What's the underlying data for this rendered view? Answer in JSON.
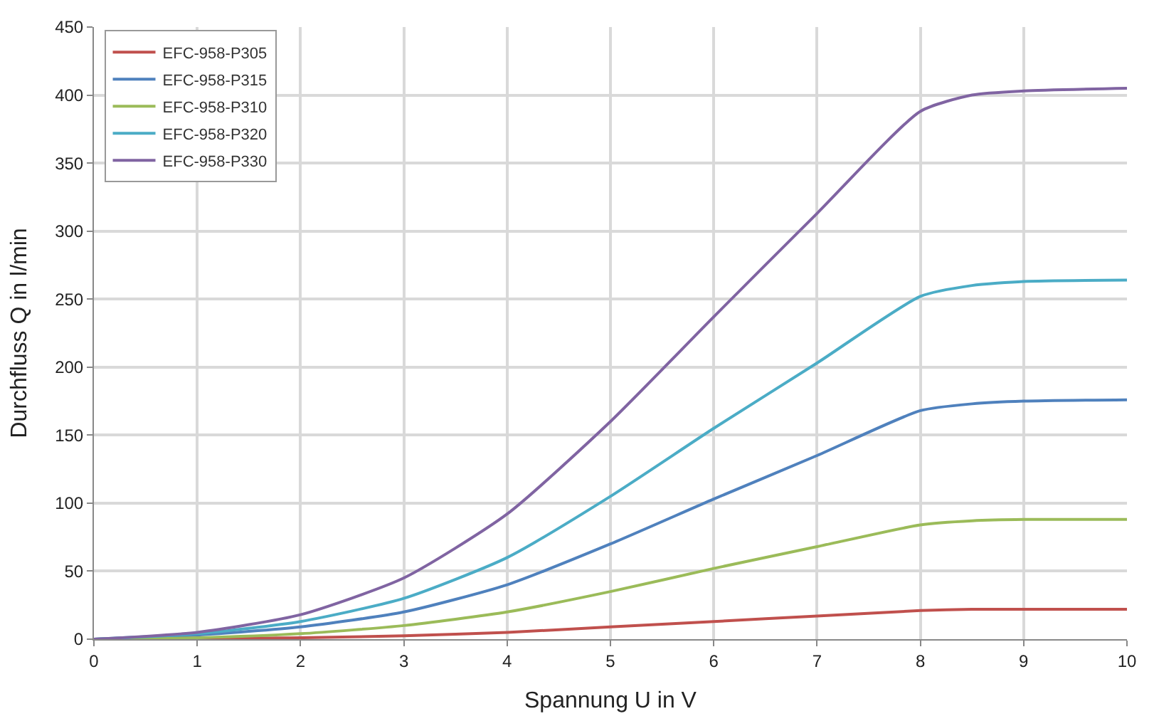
{
  "chart_data": {
    "type": "line",
    "xlabel": "Spannung U in V",
    "ylabel": "Durchfluss Q in l/min",
    "x": [
      0,
      1,
      2,
      3,
      4,
      5,
      6,
      7,
      8,
      8.5,
      9,
      10
    ],
    "series": [
      {
        "name": "EFC-958-P305",
        "color": "#c0504d",
        "values": [
          0,
          0.5,
          1,
          2.5,
          5,
          9,
          13,
          17,
          21,
          22,
          22,
          22
        ]
      },
      {
        "name": "EFC-958-P315",
        "color": "#4f81bd",
        "values": [
          0,
          3,
          9,
          20,
          40,
          70,
          103,
          135,
          168,
          173,
          175,
          176
        ]
      },
      {
        "name": "EFC-958-P310",
        "color": "#9bbb59",
        "values": [
          0,
          1,
          4,
          10,
          20,
          35,
          52,
          68,
          84,
          87,
          88,
          88
        ]
      },
      {
        "name": "EFC-958-P320",
        "color": "#4bacc6",
        "values": [
          0,
          4,
          13,
          30,
          60,
          105,
          155,
          203,
          252,
          260,
          263,
          264
        ]
      },
      {
        "name": "EFC-958-P330",
        "color": "#8064a2",
        "values": [
          0,
          5,
          18,
          45,
          92,
          160,
          237,
          313,
          388,
          400,
          403,
          405
        ]
      }
    ],
    "xlim": [
      0,
      10
    ],
    "xticks": [
      0,
      1,
      2,
      3,
      4,
      5,
      6,
      7,
      8,
      9,
      10
    ],
    "ylim": [
      0,
      450
    ],
    "yticks": [
      0,
      50,
      100,
      150,
      200,
      250,
      300,
      350,
      400,
      450
    ],
    "grid": true,
    "legend": "top left",
    "marker": "none",
    "line_style": "solid"
  }
}
